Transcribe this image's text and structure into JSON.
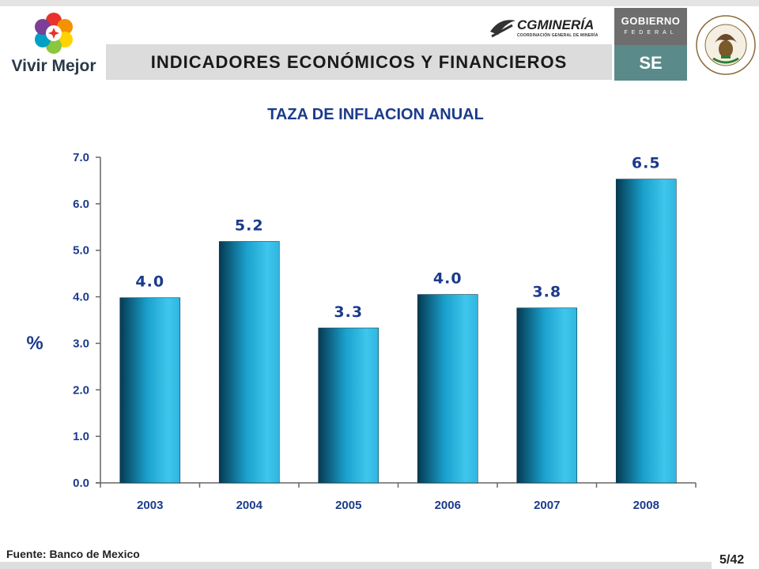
{
  "header": {
    "title": "INDICADORES ECONÓMICOS Y FINANCIEROS",
    "logo_left_text": "Vivir Mejor",
    "logo_center_text": "CGMINERÍA",
    "logo_center_subtext": "COORDINACIÓN GENERAL DE MINERÍA",
    "gobierno_text": "GOBIERNO",
    "federal_text": "FEDERAL",
    "se_text": "SE"
  },
  "colors": {
    "title_blue": "#1b3b8c",
    "bar_light": "#3fc6ec",
    "bar_dark": "#053a52",
    "gob_gray": "#6e6e6e",
    "se_teal": "#5b8a8a"
  },
  "chart_data": {
    "type": "bar",
    "title": "TAZA DE INFLACION ANUAL",
    "ylabel": "%",
    "xlabel": "",
    "ylim": [
      0,
      7
    ],
    "yticks": [
      "0.0",
      "1.0",
      "2.0",
      "3.0",
      "4.0",
      "5.0",
      "6.0",
      "7.0"
    ],
    "categories": [
      "2003",
      "2004",
      "2005",
      "2006",
      "2007",
      "2008"
    ],
    "values": [
      3.98,
      5.19,
      3.33,
      4.05,
      3.76,
      6.53
    ],
    "data_labels": [
      "4.0",
      "5.2",
      "3.3",
      "4.0",
      "3.8",
      "6.5"
    ]
  },
  "footer": {
    "source": "Fuente: Banco de Mexico",
    "page": "5/42"
  }
}
